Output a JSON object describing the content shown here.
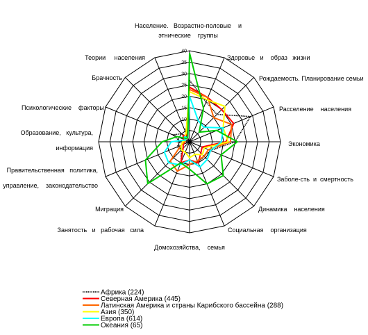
{
  "chart_data": {
    "type": "radar",
    "title": "",
    "r_range": [
      0,
      40
    ],
    "r_ticks": [
      0,
      5,
      10,
      15,
      20,
      25,
      30,
      35,
      40
    ],
    "grid": true,
    "legend_position": "bottom-left",
    "categories": [
      {
        "lines": [
          "Население.   Возрастно-половые    и",
          "этнические    группы"
        ]
      },
      {
        "lines": [
          "Здоровье   и    образ   жизни"
        ]
      },
      {
        "lines": [
          "Рождаемость. Планирование семьи"
        ]
      },
      {
        "lines": [
          "Расселение    населения"
        ]
      },
      {
        "lines": [
          "Экономика"
        ]
      },
      {
        "lines": [
          "Заболе-сть  и  смертность"
        ]
      },
      {
        "lines": [
          "Динамика    населения"
        ]
      },
      {
        "lines": [
          "Социальная    организация"
        ]
      },
      {
        "lines": [
          "Домохозяйства,    семья"
        ]
      },
      {
        "lines": [
          "Занятость   и   рабочая   сила"
        ]
      },
      {
        "lines": [
          "Миграция"
        ]
      },
      {
        "lines": [
          "Правительственная   политика,",
          "управление,    законодательство"
        ]
      },
      {
        "lines": [
          "Образование,   культура,",
          "информация"
        ]
      },
      {
        "lines": [
          "Психологические    факторы"
        ]
      },
      {
        "lines": [
          "Брачность"
        ]
      },
      {
        "lines": [
          "Теории     населения"
        ]
      }
    ],
    "series": [
      {
        "name": "Африка (224)",
        "color": "#000000",
        "dashed": true,
        "values": [
          27,
          19,
          17,
          29,
          20,
          10,
          9,
          10,
          10,
          10,
          5,
          6,
          4,
          8,
          5,
          2
        ]
      },
      {
        "name": "Северная Америка (445)",
        "color": "#ff0000",
        "dashed": false,
        "values": [
          24,
          21,
          20,
          21,
          16,
          6,
          7,
          10,
          8,
          10,
          4,
          3,
          2,
          3,
          4,
          3
        ]
      },
      {
        "name": "Латинская Америка и страны Карибского бассейна (288)",
        "color": "#ff6600",
        "dashed": false,
        "values": [
          23,
          21,
          15,
          20,
          18,
          9,
          9,
          9,
          10,
          14,
          12,
          4,
          2,
          2,
          3,
          4
        ]
      },
      {
        "name": "Азия (350)",
        "color": "#ffff00",
        "dashed": false,
        "values": [
          22,
          20,
          22,
          16,
          17,
          7,
          8,
          6,
          7,
          5,
          5,
          4,
          3,
          2,
          3,
          4
        ]
      },
      {
        "name": "Европа (614)",
        "color": "#00ffff",
        "dashed": false,
        "values": [
          20,
          10,
          9,
          16,
          14,
          10,
          11,
          12,
          8,
          11,
          13,
          12,
          8,
          2,
          3,
          2
        ]
      },
      {
        "name": "Океания (65)",
        "color": "#00cc00",
        "dashed": false,
        "values": [
          39,
          16,
          6,
          13,
          21,
          15,
          21,
          20,
          12,
          10,
          26,
          21,
          12,
          6,
          2,
          2
        ]
      }
    ]
  }
}
